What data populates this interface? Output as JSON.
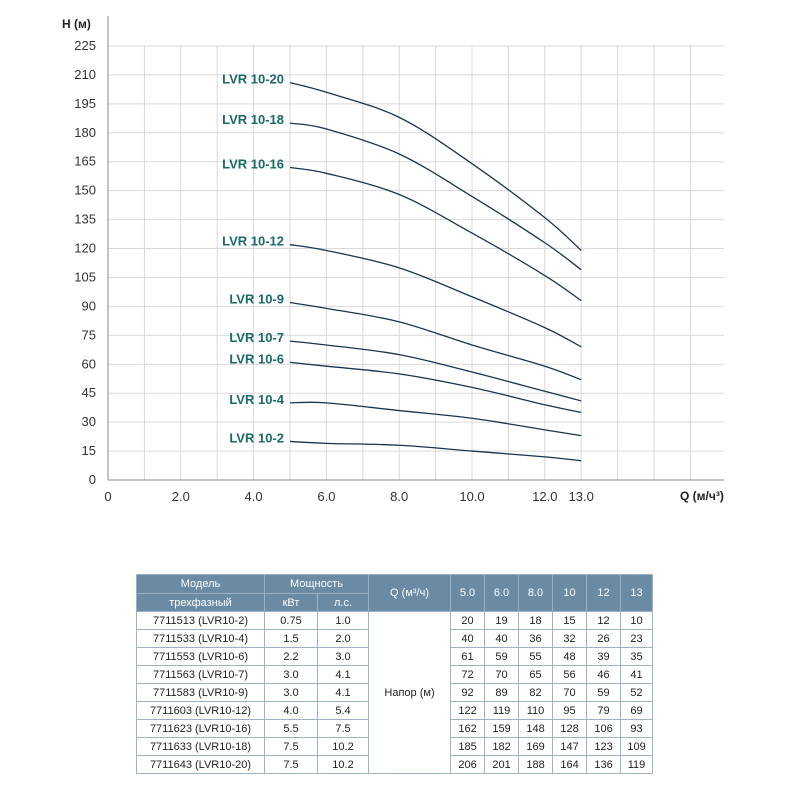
{
  "chart_data": {
    "type": "line",
    "ylabel": "H (м)",
    "xlabel": "Q (м/ч³)",
    "xlim": [
      0,
      13
    ],
    "ylim": [
      0,
      225
    ],
    "xticks": [
      "0",
      "2.0",
      "4.0",
      "6.0",
      "8.0",
      "10.0",
      "12.0",
      "13.0"
    ],
    "yticks": [
      "0",
      "15",
      "30",
      "45",
      "60",
      "75",
      "90",
      "105",
      "120",
      "135",
      "150",
      "165",
      "180",
      "195",
      "210",
      "225"
    ],
    "grid": true,
    "line_color": "#1a3550",
    "label_color": "#1a6a6a",
    "x": [
      5.0,
      6.0,
      8.0,
      10.0,
      12.0,
      13.0
    ],
    "series": [
      {
        "name": "LVR 10-20",
        "values": [
          206,
          201,
          188,
          164,
          136,
          119
        ]
      },
      {
        "name": "LVR 10-18",
        "values": [
          185,
          182,
          169,
          147,
          123,
          109
        ]
      },
      {
        "name": "LVR 10-16",
        "values": [
          162,
          159,
          148,
          128,
          106,
          93
        ]
      },
      {
        "name": "LVR 10-12",
        "values": [
          122,
          119,
          110,
          95,
          79,
          69
        ]
      },
      {
        "name": "LVR 10-9",
        "values": [
          92,
          89,
          82,
          70,
          59,
          52
        ]
      },
      {
        "name": "LVR 10-7",
        "values": [
          72,
          70,
          65,
          56,
          46,
          41
        ]
      },
      {
        "name": "LVR 10-6",
        "values": [
          61,
          59,
          55,
          48,
          39,
          35
        ]
      },
      {
        "name": "LVR 10-4",
        "values": [
          40,
          40,
          36,
          32,
          26,
          23
        ]
      },
      {
        "name": "LVR 10-2",
        "values": [
          20,
          19,
          18,
          15,
          12,
          10
        ]
      }
    ]
  },
  "table": {
    "header_color": "#6b8ba4",
    "col_model_top": "Модель",
    "col_model_bottom": "трехфазный",
    "col_power": "Мощность",
    "col_kw": "кВт",
    "col_hp": "л.с.",
    "col_q": "Q (м³/ч)",
    "q_values": [
      "5.0",
      "6.0",
      "8.0",
      "10",
      "12",
      "13"
    ],
    "head_label": "Напор (м)",
    "rows": [
      {
        "model": "7711513 (LVR10-2)",
        "kw": "0.75",
        "hp": "1.0",
        "h": [
          "20",
          "19",
          "18",
          "15",
          "12",
          "10"
        ]
      },
      {
        "model": "7711533 (LVR10-4)",
        "kw": "1.5",
        "hp": "2.0",
        "h": [
          "40",
          "40",
          "36",
          "32",
          "26",
          "23"
        ]
      },
      {
        "model": "7711553 (LVR10-6)",
        "kw": "2.2",
        "hp": "3.0",
        "h": [
          "61",
          "59",
          "55",
          "48",
          "39",
          "35"
        ]
      },
      {
        "model": "7711563 (LVR10-7)",
        "kw": "3.0",
        "hp": "4.1",
        "h": [
          "72",
          "70",
          "65",
          "56",
          "46",
          "41"
        ]
      },
      {
        "model": "7711583 (LVR10-9)",
        "kw": "3.0",
        "hp": "4.1",
        "h": [
          "92",
          "89",
          "82",
          "70",
          "59",
          "52"
        ]
      },
      {
        "model": "7711603 (LVR10-12)",
        "kw": "4.0",
        "hp": "5.4",
        "h": [
          "122",
          "119",
          "110",
          "95",
          "79",
          "69"
        ]
      },
      {
        "model": "7711623 (LVR10-16)",
        "kw": "5.5",
        "hp": "7.5",
        "h": [
          "162",
          "159",
          "148",
          "128",
          "106",
          "93"
        ]
      },
      {
        "model": "7711633 (LVR10-18)",
        "kw": "7.5",
        "hp": "10.2",
        "h": [
          "185",
          "182",
          "169",
          "147",
          "123",
          "109"
        ]
      },
      {
        "model": "7711643 (LVR10-20)",
        "kw": "7.5",
        "hp": "10.2",
        "h": [
          "206",
          "201",
          "188",
          "164",
          "136",
          "119"
        ]
      }
    ]
  }
}
